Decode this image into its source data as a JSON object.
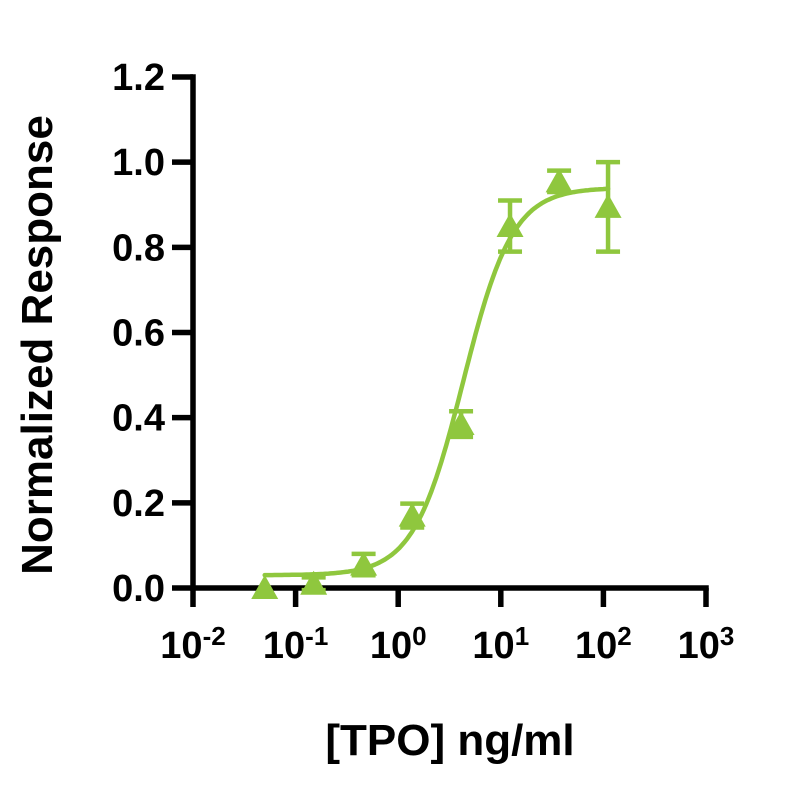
{
  "figure": {
    "background": "#FFFFFF"
  },
  "colors": {
    "accent_green": "#8FC73E",
    "axis_black": "#000000"
  },
  "chart_data": {
    "type": "scatter",
    "title": "",
    "xlabel": "[TPO] ng/ml",
    "ylabel": "Normalized Response",
    "x_scale": "log10",
    "x_tick_base": "10",
    "x_tick_exponents": [
      -2,
      -1,
      0,
      1,
      2,
      3
    ],
    "xlim": [
      0.01,
      1000
    ],
    "ylim": [
      0,
      1.2
    ],
    "grid": false,
    "legend": false,
    "y_ticks": [
      {
        "value": 0.0,
        "label": "0.0"
      },
      {
        "value": 0.2,
        "label": "0.2"
      },
      {
        "value": 0.4,
        "label": "0.4"
      },
      {
        "value": 0.6,
        "label": "0.6"
      },
      {
        "value": 0.8,
        "label": "0.8"
      },
      {
        "value": 1.0,
        "label": "1.0"
      },
      {
        "value": 1.2,
        "label": "1.2"
      }
    ],
    "series": [
      {
        "marker": "triangle-up",
        "color": "#8FC73E",
        "points": [
          {
            "x": 0.05,
            "y": 0.0,
            "err": 0
          },
          {
            "x": 0.15,
            "y": 0.01,
            "err": 0.015
          },
          {
            "x": 0.46,
            "y": 0.055,
            "err": 0.025
          },
          {
            "x": 1.37,
            "y": 0.17,
            "err": 0.028
          },
          {
            "x": 4.1,
            "y": 0.385,
            "err": 0.03
          },
          {
            "x": 12.3,
            "y": 0.85,
            "err": 0.06
          },
          {
            "x": 37,
            "y": 0.955,
            "err": 0.025
          },
          {
            "x": 111,
            "y": 0.895,
            "err": 0.105
          }
        ]
      }
    ],
    "fit_curve": {
      "model": "4PL",
      "bottom": 0.03,
      "top": 0.94,
      "ec50": 4.3,
      "hill": 1.8,
      "x_start": 0.05,
      "x_end": 111
    }
  }
}
